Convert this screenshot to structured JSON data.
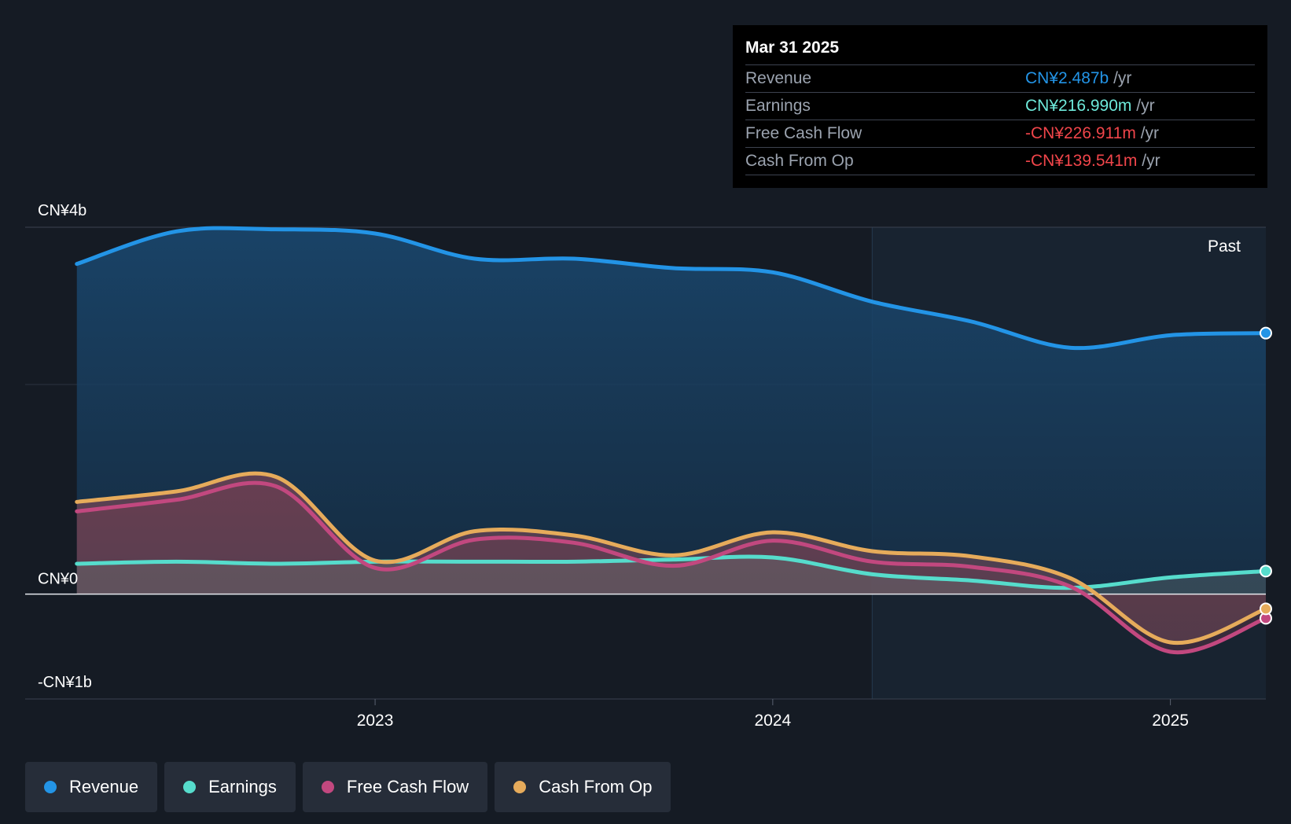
{
  "tooltip": {
    "date": "Mar 31 2025",
    "rows": [
      {
        "label": "Revenue",
        "value": "CN¥2.487b",
        "unit": "/yr",
        "color": "#2394e6"
      },
      {
        "label": "Earnings",
        "value": "CN¥216.990m",
        "unit": "/yr",
        "color": "#6ee9da"
      },
      {
        "label": "Free Cash Flow",
        "value": "-CN¥226.911m",
        "unit": "/yr",
        "color": "#f0454a"
      },
      {
        "label": "Cash From Op",
        "value": "-CN¥139.541m",
        "unit": "/yr",
        "color": "#f0454a"
      }
    ]
  },
  "legend": [
    {
      "label": "Revenue",
      "color": "#2394e6"
    },
    {
      "label": "Earnings",
      "color": "#56dccc"
    },
    {
      "label": "Free Cash Flow",
      "color": "#c2487f"
    },
    {
      "label": "Cash From Op",
      "color": "#e6ab5b"
    }
  ],
  "past_label": "Past",
  "chart_data": {
    "type": "area",
    "ylim": [
      -1.0,
      3.5
    ],
    "y_ticks": [
      {
        "value": 3.5,
        "label": "CN¥4b"
      },
      {
        "value": 0,
        "label": "CN¥0"
      },
      {
        "value": -1.0,
        "label": "-CN¥1b"
      }
    ],
    "x_ticks": [
      {
        "value": 2023.0,
        "label": "2023"
      },
      {
        "value": 2024.0,
        "label": "2024"
      },
      {
        "value": 2025.0,
        "label": "2025"
      }
    ],
    "xlim": [
      2022.12,
      2025.24
    ],
    "past_start": 2024.25,
    "series": [
      {
        "name": "Revenue",
        "color": "#2394e6",
        "points": [
          [
            2022.25,
            3.15
          ],
          [
            2022.5,
            3.46
          ],
          [
            2022.75,
            3.48
          ],
          [
            2023.0,
            3.44
          ],
          [
            2023.25,
            3.2
          ],
          [
            2023.5,
            3.2
          ],
          [
            2023.75,
            3.11
          ],
          [
            2024.0,
            3.07
          ],
          [
            2024.25,
            2.79
          ],
          [
            2024.5,
            2.6
          ],
          [
            2024.75,
            2.35
          ],
          [
            2025.0,
            2.47
          ],
          [
            2025.24,
            2.49
          ]
        ]
      },
      {
        "name": "Earnings",
        "color": "#56dccc",
        "points": [
          [
            2022.25,
            0.29
          ],
          [
            2022.5,
            0.31
          ],
          [
            2022.75,
            0.29
          ],
          [
            2023.0,
            0.31
          ],
          [
            2023.25,
            0.31
          ],
          [
            2023.5,
            0.31
          ],
          [
            2023.75,
            0.33
          ],
          [
            2024.0,
            0.35
          ],
          [
            2024.25,
            0.19
          ],
          [
            2024.5,
            0.13
          ],
          [
            2024.75,
            0.06
          ],
          [
            2025.0,
            0.16
          ],
          [
            2025.24,
            0.22
          ]
        ]
      },
      {
        "name": "Free Cash Flow",
        "color": "#c2487f",
        "points": [
          [
            2022.25,
            0.79
          ],
          [
            2022.5,
            0.9
          ],
          [
            2022.75,
            1.03
          ],
          [
            2023.0,
            0.25
          ],
          [
            2023.25,
            0.52
          ],
          [
            2023.5,
            0.49
          ],
          [
            2023.75,
            0.27
          ],
          [
            2024.0,
            0.51
          ],
          [
            2024.25,
            0.31
          ],
          [
            2024.5,
            0.26
          ],
          [
            2024.75,
            0.07
          ],
          [
            2025.0,
            -0.55
          ],
          [
            2025.24,
            -0.23
          ]
        ]
      },
      {
        "name": "Cash From Op",
        "color": "#e6ab5b",
        "points": [
          [
            2022.25,
            0.88
          ],
          [
            2022.5,
            0.98
          ],
          [
            2022.75,
            1.12
          ],
          [
            2023.0,
            0.32
          ],
          [
            2023.25,
            0.6
          ],
          [
            2023.5,
            0.56
          ],
          [
            2023.75,
            0.37
          ],
          [
            2024.0,
            0.59
          ],
          [
            2024.25,
            0.41
          ],
          [
            2024.5,
            0.36
          ],
          [
            2024.75,
            0.15
          ],
          [
            2025.0,
            -0.46
          ],
          [
            2025.24,
            -0.14
          ]
        ]
      }
    ]
  }
}
